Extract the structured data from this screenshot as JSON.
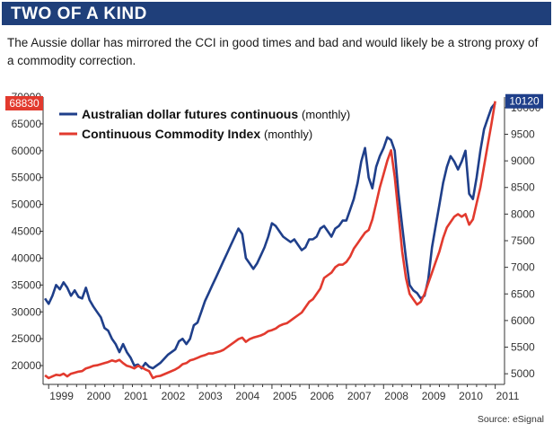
{
  "header": {
    "title": "TWO OF A KIND"
  },
  "subtitle": "The Aussie dollar has mirrored the CCI in good times and bad and would likely be a strong proxy of a commodity correction.",
  "source": "Source: eSignal",
  "colors": {
    "header_bg": "#1f3f7a",
    "aud": "#1f3f8a",
    "cci": "#e23a2e"
  },
  "chart_data": {
    "type": "line",
    "x_axis": {
      "ticks": [
        "1999",
        "2000",
        "2001",
        "2002",
        "2003",
        "2004",
        "2005",
        "2006",
        "2007",
        "2008",
        "2009",
        "2010",
        "2011"
      ],
      "range": [
        1998.85,
        2011.25
      ]
    },
    "y_left": {
      "ticks": [
        20000,
        25000,
        30000,
        35000,
        40000,
        45000,
        50000,
        55000,
        60000,
        65000,
        70000
      ],
      "range": [
        16500,
        70000
      ],
      "current_value": 68830
    },
    "y_right": {
      "ticks": [
        5000,
        5500,
        6000,
        6500,
        7000,
        7500,
        8000,
        8500,
        9000,
        9500,
        10000
      ],
      "range": [
        4800,
        10200
      ],
      "current_value": 10120
    },
    "grid": false,
    "legend_position": "top-left",
    "series": [
      {
        "name": "Australian dollar futures continuous",
        "note": "(monthly)",
        "axis": "left",
        "color": "#1f3f8a",
        "points": [
          [
            1998.9,
            32500
          ],
          [
            1999.0,
            31500
          ],
          [
            1999.1,
            33000
          ],
          [
            1999.2,
            35000
          ],
          [
            1999.3,
            34200
          ],
          [
            1999.4,
            35500
          ],
          [
            1999.5,
            34500
          ],
          [
            1999.6,
            33000
          ],
          [
            1999.7,
            34000
          ],
          [
            1999.8,
            32800
          ],
          [
            1999.9,
            32500
          ],
          [
            2000.0,
            34500
          ],
          [
            2000.1,
            32200
          ],
          [
            2000.2,
            31000
          ],
          [
            2000.3,
            30000
          ],
          [
            2000.4,
            29000
          ],
          [
            2000.5,
            27000
          ],
          [
            2000.6,
            26500
          ],
          [
            2000.7,
            25000
          ],
          [
            2000.8,
            24000
          ],
          [
            2000.9,
            22500
          ],
          [
            2001.0,
            24000
          ],
          [
            2001.1,
            22500
          ],
          [
            2001.2,
            21500
          ],
          [
            2001.3,
            20000
          ],
          [
            2001.4,
            20200
          ],
          [
            2001.5,
            19500
          ],
          [
            2001.6,
            20500
          ],
          [
            2001.7,
            19800
          ],
          [
            2001.8,
            19500
          ],
          [
            2001.9,
            20000
          ],
          [
            2002.0,
            20500
          ],
          [
            2002.2,
            22000
          ],
          [
            2002.4,
            23000
          ],
          [
            2002.5,
            24500
          ],
          [
            2002.6,
            25000
          ],
          [
            2002.7,
            24000
          ],
          [
            2002.8,
            25000
          ],
          [
            2002.9,
            27500
          ],
          [
            2003.0,
            28000
          ],
          [
            2003.1,
            30000
          ],
          [
            2003.2,
            32000
          ],
          [
            2003.3,
            33500
          ],
          [
            2003.4,
            35000
          ],
          [
            2003.5,
            36500
          ],
          [
            2003.6,
            38000
          ],
          [
            2003.7,
            39500
          ],
          [
            2003.8,
            41000
          ],
          [
            2003.9,
            42500
          ],
          [
            2004.0,
            44000
          ],
          [
            2004.1,
            45500
          ],
          [
            2004.2,
            44500
          ],
          [
            2004.3,
            40000
          ],
          [
            2004.4,
            39000
          ],
          [
            2004.5,
            38000
          ],
          [
            2004.6,
            39000
          ],
          [
            2004.7,
            40500
          ],
          [
            2004.8,
            42000
          ],
          [
            2004.9,
            44000
          ],
          [
            2005.0,
            46500
          ],
          [
            2005.1,
            46000
          ],
          [
            2005.2,
            45000
          ],
          [
            2005.3,
            44000
          ],
          [
            2005.4,
            43500
          ],
          [
            2005.5,
            43000
          ],
          [
            2005.6,
            43500
          ],
          [
            2005.7,
            42500
          ],
          [
            2005.8,
            41500
          ],
          [
            2005.9,
            42000
          ],
          [
            2006.0,
            43500
          ],
          [
            2006.1,
            43500
          ],
          [
            2006.2,
            44000
          ],
          [
            2006.3,
            45500
          ],
          [
            2006.4,
            46000
          ],
          [
            2006.5,
            45000
          ],
          [
            2006.6,
            44000
          ],
          [
            2006.7,
            45500
          ],
          [
            2006.8,
            46000
          ],
          [
            2006.9,
            47000
          ],
          [
            2007.0,
            47000
          ],
          [
            2007.1,
            49000
          ],
          [
            2007.2,
            51000
          ],
          [
            2007.3,
            54000
          ],
          [
            2007.4,
            58000
          ],
          [
            2007.5,
            60500
          ],
          [
            2007.6,
            55000
          ],
          [
            2007.7,
            53000
          ],
          [
            2007.8,
            57000
          ],
          [
            2007.9,
            59000
          ],
          [
            2008.0,
            60500
          ],
          [
            2008.1,
            62500
          ],
          [
            2008.2,
            62000
          ],
          [
            2008.3,
            60000
          ],
          [
            2008.4,
            52000
          ],
          [
            2008.5,
            46000
          ],
          [
            2008.6,
            40000
          ],
          [
            2008.7,
            35000
          ],
          [
            2008.8,
            34000
          ],
          [
            2008.9,
            33500
          ],
          [
            2009.0,
            32500
          ],
          [
            2009.1,
            33000
          ],
          [
            2009.2,
            36000
          ],
          [
            2009.3,
            42000
          ],
          [
            2009.4,
            46000
          ],
          [
            2009.5,
            50000
          ],
          [
            2009.6,
            54000
          ],
          [
            2009.7,
            57000
          ],
          [
            2009.8,
            59000
          ],
          [
            2009.9,
            58000
          ],
          [
            2010.0,
            56500
          ],
          [
            2010.1,
            58000
          ],
          [
            2010.2,
            60000
          ],
          [
            2010.3,
            52000
          ],
          [
            2010.4,
            51000
          ],
          [
            2010.5,
            55000
          ],
          [
            2010.6,
            60000
          ],
          [
            2010.7,
            64000
          ],
          [
            2010.8,
            66000
          ],
          [
            2010.9,
            68000
          ],
          [
            2011.0,
            68830
          ]
        ]
      },
      {
        "name": "Continuous Commodity Index",
        "note": "(monthly)",
        "axis": "right",
        "color": "#e23a2e",
        "points": [
          [
            1998.9,
            4970
          ],
          [
            1999.0,
            4920
          ],
          [
            1999.1,
            4950
          ],
          [
            1999.2,
            4980
          ],
          [
            1999.3,
            4970
          ],
          [
            1999.4,
            5000
          ],
          [
            1999.5,
            4950
          ],
          [
            1999.6,
            5000
          ],
          [
            1999.7,
            5020
          ],
          [
            1999.8,
            5040
          ],
          [
            1999.9,
            5050
          ],
          [
            2000.0,
            5100
          ],
          [
            2000.1,
            5120
          ],
          [
            2000.2,
            5150
          ],
          [
            2000.3,
            5160
          ],
          [
            2000.4,
            5180
          ],
          [
            2000.5,
            5200
          ],
          [
            2000.6,
            5220
          ],
          [
            2000.7,
            5250
          ],
          [
            2000.8,
            5230
          ],
          [
            2000.9,
            5260
          ],
          [
            2001.0,
            5200
          ],
          [
            2001.1,
            5150
          ],
          [
            2001.2,
            5130
          ],
          [
            2001.3,
            5100
          ],
          [
            2001.4,
            5150
          ],
          [
            2001.5,
            5120
          ],
          [
            2001.6,
            5080
          ],
          [
            2001.7,
            5050
          ],
          [
            2001.8,
            4920
          ],
          [
            2001.9,
            4950
          ],
          [
            2002.0,
            4960
          ],
          [
            2002.2,
            5020
          ],
          [
            2002.4,
            5080
          ],
          [
            2002.5,
            5120
          ],
          [
            2002.6,
            5180
          ],
          [
            2002.7,
            5200
          ],
          [
            2002.8,
            5250
          ],
          [
            2002.9,
            5270
          ],
          [
            2003.0,
            5300
          ],
          [
            2003.1,
            5330
          ],
          [
            2003.2,
            5350
          ],
          [
            2003.3,
            5380
          ],
          [
            2003.4,
            5380
          ],
          [
            2003.5,
            5400
          ],
          [
            2003.6,
            5420
          ],
          [
            2003.7,
            5450
          ],
          [
            2003.8,
            5500
          ],
          [
            2003.9,
            5550
          ],
          [
            2004.0,
            5600
          ],
          [
            2004.1,
            5650
          ],
          [
            2004.2,
            5680
          ],
          [
            2004.3,
            5600
          ],
          [
            2004.4,
            5650
          ],
          [
            2004.5,
            5680
          ],
          [
            2004.6,
            5700
          ],
          [
            2004.7,
            5720
          ],
          [
            2004.8,
            5750
          ],
          [
            2004.9,
            5800
          ],
          [
            2005.0,
            5820
          ],
          [
            2005.1,
            5850
          ],
          [
            2005.2,
            5900
          ],
          [
            2005.3,
            5930
          ],
          [
            2005.4,
            5950
          ],
          [
            2005.5,
            6000
          ],
          [
            2005.6,
            6050
          ],
          [
            2005.7,
            6100
          ],
          [
            2005.8,
            6150
          ],
          [
            2005.9,
            6250
          ],
          [
            2006.0,
            6350
          ],
          [
            2006.1,
            6400
          ],
          [
            2006.2,
            6500
          ],
          [
            2006.3,
            6600
          ],
          [
            2006.4,
            6800
          ],
          [
            2006.5,
            6850
          ],
          [
            2006.6,
            6900
          ],
          [
            2006.7,
            7000
          ],
          [
            2006.8,
            7050
          ],
          [
            2006.9,
            7050
          ],
          [
            2007.0,
            7100
          ],
          [
            2007.1,
            7200
          ],
          [
            2007.2,
            7350
          ],
          [
            2007.3,
            7450
          ],
          [
            2007.4,
            7550
          ],
          [
            2007.5,
            7650
          ],
          [
            2007.6,
            7700
          ],
          [
            2007.7,
            7900
          ],
          [
            2007.8,
            8200
          ],
          [
            2007.9,
            8500
          ],
          [
            2008.0,
            8750
          ],
          [
            2008.1,
            9000
          ],
          [
            2008.2,
            9200
          ],
          [
            2008.3,
            8700
          ],
          [
            2008.4,
            8000
          ],
          [
            2008.5,
            7300
          ],
          [
            2008.6,
            6800
          ],
          [
            2008.7,
            6500
          ],
          [
            2008.8,
            6400
          ],
          [
            2008.9,
            6300
          ],
          [
            2009.0,
            6350
          ],
          [
            2009.1,
            6500
          ],
          [
            2009.2,
            6700
          ],
          [
            2009.3,
            6900
          ],
          [
            2009.4,
            7100
          ],
          [
            2009.5,
            7300
          ],
          [
            2009.6,
            7550
          ],
          [
            2009.7,
            7750
          ],
          [
            2009.8,
            7850
          ],
          [
            2009.9,
            7950
          ],
          [
            2010.0,
            8000
          ],
          [
            2010.1,
            7950
          ],
          [
            2010.2,
            8000
          ],
          [
            2010.3,
            7800
          ],
          [
            2010.4,
            7900
          ],
          [
            2010.5,
            8200
          ],
          [
            2010.6,
            8500
          ],
          [
            2010.7,
            8900
          ],
          [
            2010.8,
            9300
          ],
          [
            2010.9,
            9700
          ],
          [
            2011.0,
            10120
          ]
        ]
      }
    ]
  }
}
